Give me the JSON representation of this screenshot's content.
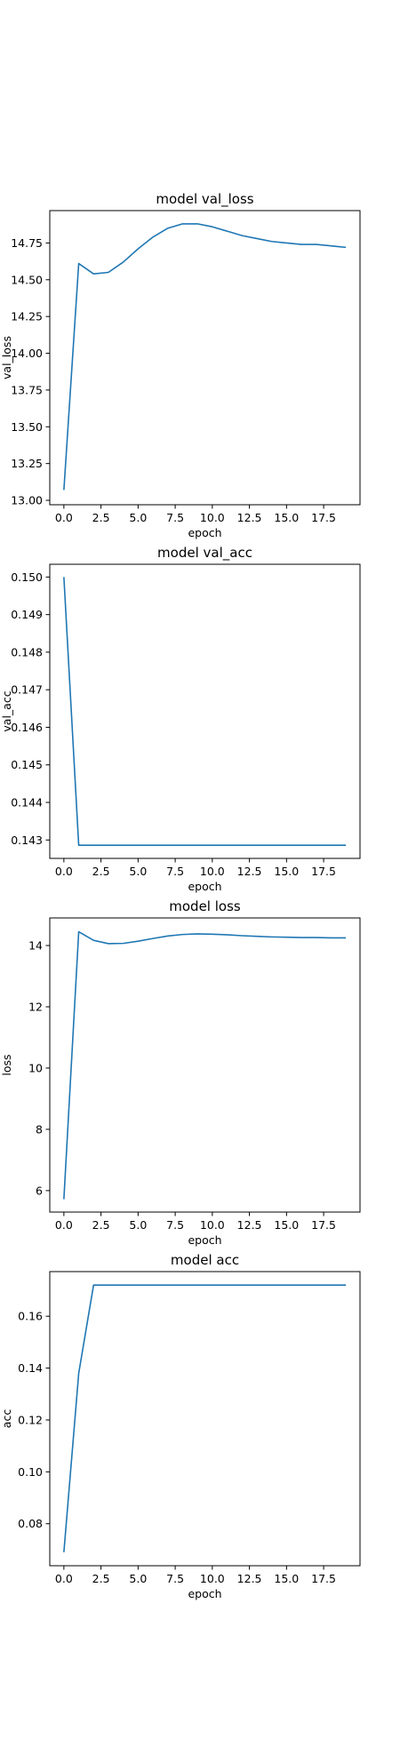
{
  "chart_data": [
    {
      "type": "line",
      "title": "model val_loss",
      "xlabel": "epoch",
      "ylabel": "val_loss",
      "xlim": [
        -0.95,
        19.95
      ],
      "ylim": [
        12.97,
        14.97
      ],
      "xticks": [
        0.0,
        2.5,
        5.0,
        7.5,
        10.0,
        12.5,
        15.0,
        17.5
      ],
      "xtick_labels": [
        "0.0",
        "2.5",
        "5.0",
        "7.5",
        "10.0",
        "12.5",
        "15.0",
        "17.5"
      ],
      "yticks": [
        13.0,
        13.25,
        13.5,
        13.75,
        14.0,
        14.25,
        14.5,
        14.75
      ],
      "ytick_labels": [
        "13.00",
        "13.25",
        "13.50",
        "13.75",
        "14.00",
        "14.25",
        "14.50",
        "14.75"
      ],
      "grid": false,
      "color": "#1f77b4",
      "x": [
        0,
        1,
        2,
        3,
        4,
        5,
        6,
        7,
        8,
        9,
        10,
        11,
        12,
        13,
        14,
        15,
        16,
        17,
        18,
        19
      ],
      "y": [
        13.07,
        14.61,
        14.54,
        14.55,
        14.62,
        14.71,
        14.79,
        14.85,
        14.88,
        14.88,
        14.86,
        14.83,
        14.8,
        14.78,
        14.76,
        14.75,
        14.74,
        14.74,
        14.73,
        14.72
      ]
    },
    {
      "type": "line",
      "title": "model val_acc",
      "xlabel": "epoch",
      "ylabel": "val_acc",
      "xlim": [
        -0.95,
        19.95
      ],
      "ylim": [
        0.14251,
        0.15034
      ],
      "xticks": [
        0.0,
        2.5,
        5.0,
        7.5,
        10.0,
        12.5,
        15.0,
        17.5
      ],
      "xtick_labels": [
        "0.0",
        "2.5",
        "5.0",
        "7.5",
        "10.0",
        "12.5",
        "15.0",
        "17.5"
      ],
      "yticks": [
        0.143,
        0.144,
        0.145,
        0.146,
        0.147,
        0.148,
        0.149,
        0.15
      ],
      "ytick_labels": [
        "0.143",
        "0.144",
        "0.145",
        "0.146",
        "0.147",
        "0.148",
        "0.149",
        "0.150"
      ],
      "grid": false,
      "color": "#1f77b4",
      "x": [
        0,
        1,
        2,
        3,
        4,
        5,
        6,
        7,
        8,
        9,
        10,
        11,
        12,
        13,
        14,
        15,
        16,
        17,
        18,
        19
      ],
      "y": [
        0.15,
        0.14286,
        0.14286,
        0.14286,
        0.14286,
        0.14286,
        0.14286,
        0.14286,
        0.14286,
        0.14286,
        0.14286,
        0.14286,
        0.14286,
        0.14286,
        0.14286,
        0.14286,
        0.14286,
        0.14286,
        0.14286,
        0.14286
      ]
    },
    {
      "type": "line",
      "title": "model loss",
      "xlabel": "epoch",
      "ylabel": "loss",
      "xlim": [
        -0.95,
        19.95
      ],
      "ylim": [
        5.3,
        14.9
      ],
      "xticks": [
        0.0,
        2.5,
        5.0,
        7.5,
        10.0,
        12.5,
        15.0,
        17.5
      ],
      "xtick_labels": [
        "0.0",
        "2.5",
        "5.0",
        "7.5",
        "10.0",
        "12.5",
        "15.0",
        "17.5"
      ],
      "yticks": [
        6,
        8,
        10,
        12,
        14
      ],
      "ytick_labels": [
        "6",
        "8",
        "10",
        "12",
        "14"
      ],
      "grid": false,
      "color": "#1f77b4",
      "x": [
        0,
        1,
        2,
        3,
        4,
        5,
        6,
        7,
        8,
        9,
        10,
        11,
        12,
        13,
        14,
        15,
        16,
        17,
        18,
        19
      ],
      "y": [
        5.72,
        14.45,
        14.17,
        14.06,
        14.07,
        14.14,
        14.23,
        14.31,
        14.36,
        14.38,
        14.37,
        14.35,
        14.32,
        14.3,
        14.28,
        14.27,
        14.26,
        14.26,
        14.25,
        14.25
      ]
    },
    {
      "type": "line",
      "title": "model acc",
      "xlabel": "epoch",
      "ylabel": "acc",
      "xlim": [
        -0.95,
        19.95
      ],
      "ylim": [
        0.0638,
        0.1772
      ],
      "xticks": [
        0.0,
        2.5,
        5.0,
        7.5,
        10.0,
        12.5,
        15.0,
        17.5
      ],
      "xtick_labels": [
        "0.0",
        "2.5",
        "5.0",
        "7.5",
        "10.0",
        "12.5",
        "15.0",
        "17.5"
      ],
      "yticks": [
        0.08,
        0.1,
        0.12,
        0.14,
        0.16
      ],
      "ytick_labels": [
        "0.08",
        "0.10",
        "0.12",
        "0.14",
        "0.16"
      ],
      "grid": false,
      "color": "#1f77b4",
      "x": [
        0,
        1,
        2,
        3,
        4,
        5,
        6,
        7,
        8,
        9,
        10,
        11,
        12,
        13,
        14,
        15,
        16,
        17,
        18,
        19
      ],
      "y": [
        0.069,
        0.138,
        0.172,
        0.172,
        0.172,
        0.172,
        0.172,
        0.172,
        0.172,
        0.172,
        0.172,
        0.172,
        0.172,
        0.172,
        0.172,
        0.172,
        0.172,
        0.172,
        0.172,
        0.172
      ]
    }
  ]
}
